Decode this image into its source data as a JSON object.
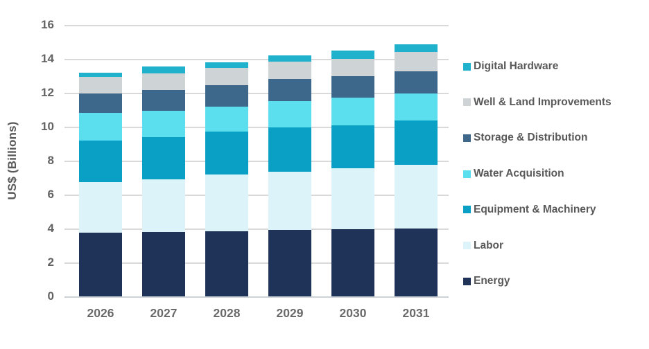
{
  "chart_data": {
    "type": "bar",
    "stacked": true,
    "title": "",
    "xlabel": "",
    "ylabel": "US$ (Billions)",
    "ylim": [
      0,
      16
    ],
    "yticks": [
      0,
      2,
      4,
      6,
      8,
      10,
      12,
      14,
      16
    ],
    "grid": true,
    "legend_position": "right",
    "categories": [
      "2026",
      "2027",
      "2028",
      "2029",
      "2030",
      "2031"
    ],
    "series": [
      {
        "name": "Energy",
        "color": "#1f3359",
        "values": [
          3.75,
          3.8,
          3.85,
          3.9,
          3.95,
          4.0
        ]
      },
      {
        "name": "Labor",
        "color": "#ddf3fa",
        "values": [
          3.0,
          3.1,
          3.35,
          3.45,
          3.6,
          3.75
        ]
      },
      {
        "name": "Equipment & Machinery",
        "color": "#0aa0c6",
        "values": [
          2.45,
          2.5,
          2.5,
          2.6,
          2.55,
          2.6
        ]
      },
      {
        "name": "Water Acquisition",
        "color": "#5bdfee",
        "values": [
          1.6,
          1.55,
          1.5,
          1.55,
          1.6,
          1.6
        ]
      },
      {
        "name": "Storage & Distribution",
        "color": "#3d678b",
        "values": [
          1.15,
          1.2,
          1.25,
          1.3,
          1.3,
          1.3
        ]
      },
      {
        "name": "Well & Land Improvements",
        "color": "#ced4d6",
        "values": [
          1.0,
          1.0,
          1.0,
          1.05,
          1.0,
          1.15
        ]
      },
      {
        "name": "Digital Hardware",
        "color": "#20b2cd",
        "values": [
          0.25,
          0.4,
          0.35,
          0.35,
          0.5,
          0.45
        ]
      }
    ],
    "legend_order_top_to_bottom": [
      "Digital Hardware",
      "Well & Land Improvements",
      "Storage & Distribution",
      "Water Acquisition",
      "Equipment & Machinery",
      "Labor",
      "Energy"
    ],
    "totals": [
      13.2,
      13.55,
      13.8,
      14.2,
      14.5,
      14.85
    ],
    "gridline_color": "#d9d9d9",
    "text_color": "#595959",
    "background_color": "#ffffff"
  }
}
